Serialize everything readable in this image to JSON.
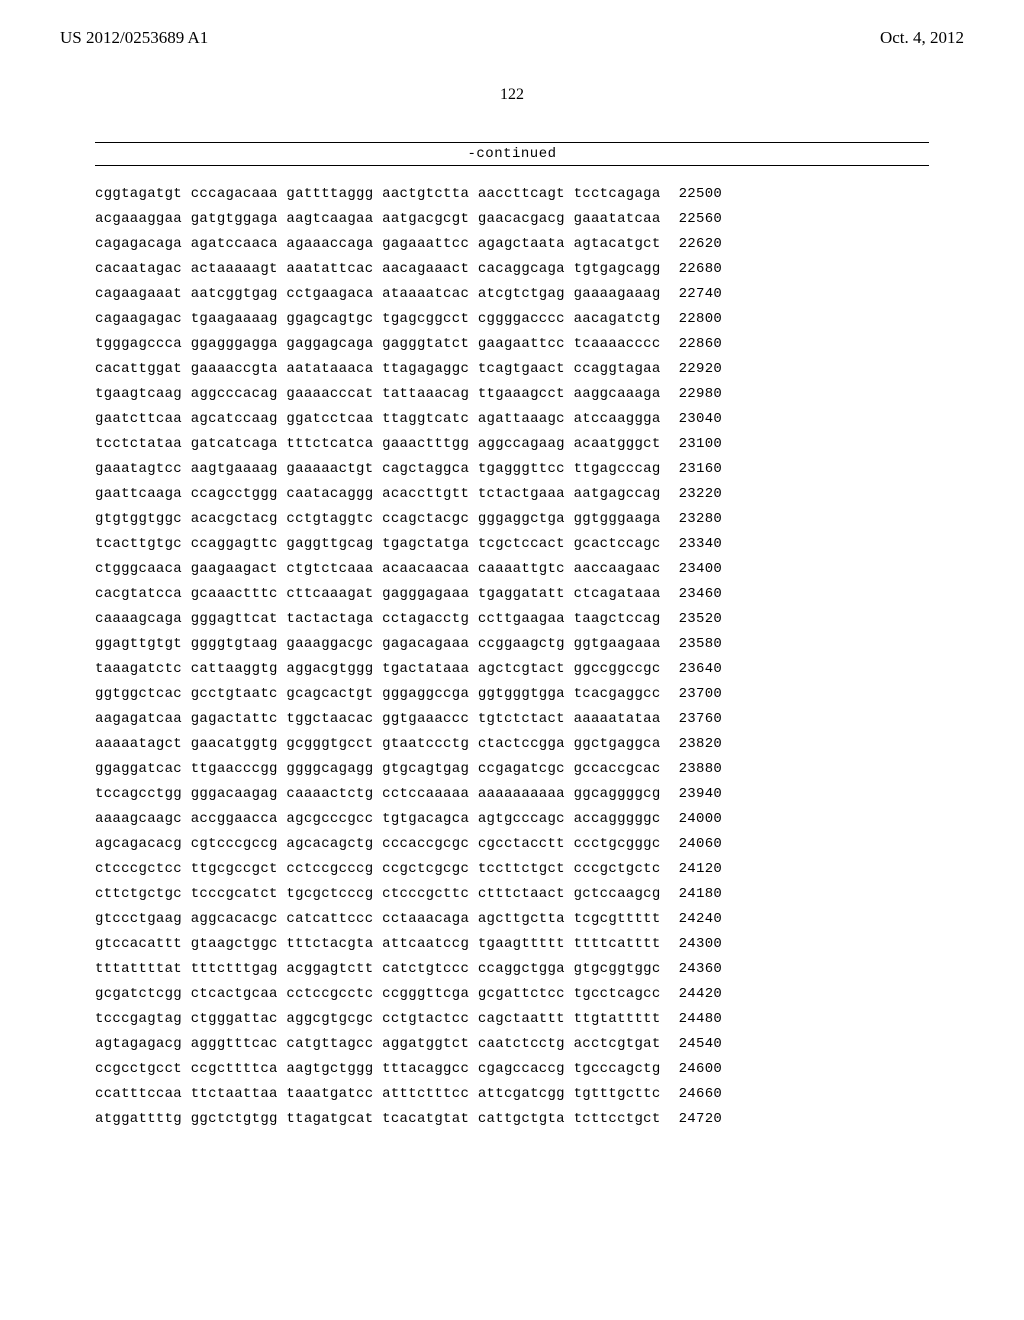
{
  "header": {
    "publication_number": "US 2012/0253689 A1",
    "publication_date": "Oct. 4, 2012"
  },
  "page_number": "122",
  "continued_label": "-continued",
  "sequence": {
    "rows": [
      {
        "groups": [
          "cggtagatgt",
          "cccagacaaa",
          "gattttaggg",
          "aactgtctta",
          "aaccttcagt",
          "tcctcagaga"
        ],
        "pos": "22500"
      },
      {
        "groups": [
          "acgaaaggaa",
          "gatgtggaga",
          "aagtcaagaa",
          "aatgacgcgt",
          "gaacacgacg",
          "gaaatatcaa"
        ],
        "pos": "22560"
      },
      {
        "groups": [
          "cagagacaga",
          "agatccaaca",
          "agaaaccaga",
          "gagaaattcc",
          "agagctaata",
          "agtacatgct"
        ],
        "pos": "22620"
      },
      {
        "groups": [
          "cacaatagac",
          "actaaaaagt",
          "aaatattcac",
          "aacagaaact",
          "cacaggcaga",
          "tgtgagcagg"
        ],
        "pos": "22680"
      },
      {
        "groups": [
          "cagaagaaat",
          "aatcggtgag",
          "cctgaagaca",
          "ataaaatcac",
          "atcgtctgag",
          "gaaaagaaag"
        ],
        "pos": "22740"
      },
      {
        "groups": [
          "cagaagagac",
          "tgaagaaaag",
          "ggagcagtgc",
          "tgagcggcct",
          "cggggacccc",
          "aacagatctg"
        ],
        "pos": "22800"
      },
      {
        "groups": [
          "tgggagccca",
          "ggagggagga",
          "gaggagcaga",
          "gagggtatct",
          "gaagaattcc",
          "tcaaaacccc"
        ],
        "pos": "22860"
      },
      {
        "groups": [
          "cacattggat",
          "gaaaaccgta",
          "aatataaaca",
          "ttagagaggc",
          "tcagtgaact",
          "ccaggtagaa"
        ],
        "pos": "22920"
      },
      {
        "groups": [
          "tgaagtcaag",
          "aggcccacag",
          "gaaaacccat",
          "tattaaacag",
          "ttgaaagcct",
          "aaggcaaaga"
        ],
        "pos": "22980"
      },
      {
        "groups": [
          "gaatcttcaa",
          "agcatccaag",
          "ggatcctcaa",
          "ttaggtcatc",
          "agattaaagc",
          "atccaaggga"
        ],
        "pos": "23040"
      },
      {
        "groups": [
          "tcctctataa",
          "gatcatcaga",
          "tttctcatca",
          "gaaactttgg",
          "aggccagaag",
          "acaatgggct"
        ],
        "pos": "23100"
      },
      {
        "groups": [
          "gaaatagtcc",
          "aagtgaaaag",
          "gaaaaactgt",
          "cagctaggca",
          "tgagggttcc",
          "ttgagcccag"
        ],
        "pos": "23160"
      },
      {
        "groups": [
          "gaattcaaga",
          "ccagcctggg",
          "caatacaggg",
          "acaccttgtt",
          "tctactgaaa",
          "aatgagccag"
        ],
        "pos": "23220"
      },
      {
        "groups": [
          "gtgtggtggc",
          "acacgctacg",
          "cctgtaggtc",
          "ccagctacgc",
          "gggaggctga",
          "ggtgggaaga"
        ],
        "pos": "23280"
      },
      {
        "groups": [
          "tcacttgtgc",
          "ccaggagttc",
          "gaggttgcag",
          "tgagctatga",
          "tcgctccact",
          "gcactccagc"
        ],
        "pos": "23340"
      },
      {
        "groups": [
          "ctgggcaaca",
          "gaagaagact",
          "ctgtctcaaa",
          "acaacaacaa",
          "caaaattgtc",
          "aaccaagaac"
        ],
        "pos": "23400"
      },
      {
        "groups": [
          "cacgtatcca",
          "gcaaactttc",
          "cttcaaagat",
          "gagggagaaa",
          "tgaggatatt",
          "ctcagataaa"
        ],
        "pos": "23460"
      },
      {
        "groups": [
          "caaaagcaga",
          "gggagttcat",
          "tactactaga",
          "cctagacctg",
          "ccttgaagaa",
          "taagctccag"
        ],
        "pos": "23520"
      },
      {
        "groups": [
          "ggagttgtgt",
          "ggggtgtaag",
          "gaaaggacgc",
          "gagacagaaa",
          "ccggaagctg",
          "ggtgaagaaa"
        ],
        "pos": "23580"
      },
      {
        "groups": [
          "taaagatctc",
          "cattaaggtg",
          "aggacgtggg",
          "tgactataaa",
          "agctcgtact",
          "ggccggccgc"
        ],
        "pos": "23640"
      },
      {
        "groups": [
          "ggtggctcac",
          "gcctgtaatc",
          "gcagcactgt",
          "gggaggccga",
          "ggtgggtgga",
          "tcacgaggcc"
        ],
        "pos": "23700"
      },
      {
        "groups": [
          "aagagatcaa",
          "gagactattc",
          "tggctaacac",
          "ggtgaaaccc",
          "tgtctctact",
          "aaaaatataa"
        ],
        "pos": "23760"
      },
      {
        "groups": [
          "aaaaatagct",
          "gaacatggtg",
          "gcgggtgcct",
          "gtaatccctg",
          "ctactccgga",
          "ggctgaggca"
        ],
        "pos": "23820"
      },
      {
        "groups": [
          "ggaggatcac",
          "ttgaacccgg",
          "ggggcagagg",
          "gtgcagtgag",
          "ccgagatcgc",
          "gccaccgcac"
        ],
        "pos": "23880"
      },
      {
        "groups": [
          "tccagcctgg",
          "gggacaagag",
          "caaaactctg",
          "cctccaaaaa",
          "aaaaaaaaaa",
          "ggcaggggcg"
        ],
        "pos": "23940"
      },
      {
        "groups": [
          "aaaagcaagc",
          "accggaacca",
          "agcgcccgcc",
          "tgtgacagca",
          "agtgcccagc",
          "accagggggc"
        ],
        "pos": "24000"
      },
      {
        "groups": [
          "agcagacacg",
          "cgtcccgccg",
          "agcacagctg",
          "cccaccgcgc",
          "cgcctacctt",
          "ccctgcgggc"
        ],
        "pos": "24060"
      },
      {
        "groups": [
          "ctcccgctcc",
          "ttgcgccgct",
          "cctccgcccg",
          "ccgctcgcgc",
          "tccttctgct",
          "cccgctgctc"
        ],
        "pos": "24120"
      },
      {
        "groups": [
          "cttctgctgc",
          "tcccgcatct",
          "tgcgctcccg",
          "ctcccgcttc",
          "ctttctaact",
          "gctccaagcg"
        ],
        "pos": "24180"
      },
      {
        "groups": [
          "gtccctgaag",
          "aggcacacgc",
          "catcattccc",
          "cctaaacaga",
          "agcttgctta",
          "tcgcgttttt"
        ],
        "pos": "24240"
      },
      {
        "groups": [
          "gtccacattt",
          "gtaagctggc",
          "tttctacgta",
          "attcaatccg",
          "tgaagttttt",
          "ttttcatttt"
        ],
        "pos": "24300"
      },
      {
        "groups": [
          "tttattttat",
          "tttctttgag",
          "acggagtctt",
          "catctgtccc",
          "ccaggctgga",
          "gtgcggtggc"
        ],
        "pos": "24360"
      },
      {
        "groups": [
          "gcgatctcgg",
          "ctcactgcaa",
          "cctccgcctc",
          "ccgggttcga",
          "gcgattctcc",
          "tgcctcagcc"
        ],
        "pos": "24420"
      },
      {
        "groups": [
          "tcccgagtag",
          "ctgggattac",
          "aggcgtgcgc",
          "cctgtactcc",
          "cagctaattt",
          "ttgtattttt"
        ],
        "pos": "24480"
      },
      {
        "groups": [
          "agtagagacg",
          "agggtttcac",
          "catgttagcc",
          "aggatggtct",
          "caatctcctg",
          "acctcgtgat"
        ],
        "pos": "24540"
      },
      {
        "groups": [
          "ccgcctgcct",
          "ccgcttttca",
          "aagtgctggg",
          "tttacaggcc",
          "cgagccaccg",
          "tgcccagctg"
        ],
        "pos": "24600"
      },
      {
        "groups": [
          "ccatttccaa",
          "ttctaattaa",
          "taaatgatcc",
          "atttctttcc",
          "attcgatcgg",
          "tgtttgcttc"
        ],
        "pos": "24660"
      },
      {
        "groups": [
          "atggattttg",
          "ggctctgtgg",
          "ttagatgcat",
          "tcacatgtat",
          "cattgctgta",
          "tcttcctgct"
        ],
        "pos": "24720"
      }
    ]
  }
}
